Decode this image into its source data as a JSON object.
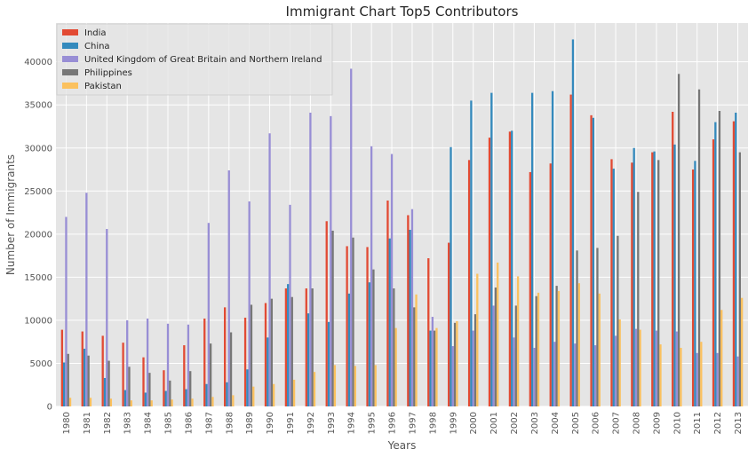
{
  "chart_data": {
    "type": "bar",
    "title": "Immigrant Chart Top5 Contributors",
    "xlabel": "Years",
    "ylabel": "Number of Immigrants",
    "ylim": [
      0,
      44500
    ],
    "yticks": [
      0,
      5000,
      10000,
      15000,
      20000,
      25000,
      30000,
      35000,
      40000
    ],
    "grid": true,
    "legend_position": "upper-left",
    "categories": [
      "1980",
      "1981",
      "1982",
      "1983",
      "1984",
      "1985",
      "1986",
      "1987",
      "1988",
      "1989",
      "1990",
      "1991",
      "1992",
      "1993",
      "1994",
      "1995",
      "1996",
      "1997",
      "1998",
      "1999",
      "2000",
      "2001",
      "2002",
      "2003",
      "2004",
      "2005",
      "2006",
      "2007",
      "2008",
      "2009",
      "2010",
      "2011",
      "2012",
      "2013"
    ],
    "series": [
      {
        "name": "India",
        "color": "#E24A33",
        "values": [
          8900,
          8700,
          8200,
          7400,
          5700,
          4200,
          7100,
          10200,
          11500,
          10300,
          12000,
          13700,
          13700,
          21500,
          18600,
          18500,
          23900,
          22200,
          17200,
          19000,
          28600,
          31200,
          31900,
          27200,
          28200,
          36200,
          33800,
          28700,
          28300,
          29500,
          34200,
          27500,
          31000,
          33100
        ]
      },
      {
        "name": "China",
        "color": "#348ABD",
        "values": [
          5100,
          6700,
          3300,
          1900,
          1600,
          1800,
          2000,
          2600,
          2800,
          4300,
          8000,
          14200,
          10800,
          9800,
          13100,
          14400,
          19500,
          20500,
          8800,
          30100,
          35500,
          36400,
          32000,
          36400,
          36600,
          42600,
          33500,
          27600,
          30000,
          29600,
          30400,
          28500,
          33000,
          34100
        ]
      },
      {
        "name": "United Kingdom of Great Britain and Northern Ireland",
        "color": "#988ED5",
        "values": [
          22000,
          24800,
          20600,
          10000,
          10200,
          9600,
          9500,
          21300,
          27400,
          23800,
          31700,
          23400,
          34100,
          33700,
          39200,
          30200,
          29300,
          22900,
          10400,
          7000,
          8800,
          11700,
          8000,
          6800,
          7500,
          7300,
          7100,
          8200,
          9000,
          8800,
          8700,
          6200,
          6200,
          5800
        ]
      },
      {
        "name": "Philippines",
        "color": "#777777",
        "values": [
          6100,
          5900,
          5300,
          4600,
          3900,
          3000,
          4100,
          7300,
          8600,
          11800,
          12500,
          12700,
          13700,
          20400,
          19600,
          15900,
          13700,
          11500,
          8800,
          9700,
          10700,
          13800,
          11700,
          12800,
          14000,
          18100,
          18400,
          19800,
          24900,
          28600,
          38600,
          36800,
          34300,
          29500
        ]
      },
      {
        "name": "Pakistan",
        "color": "#FBC15E",
        "values": [
          1000,
          1000,
          900,
          700,
          700,
          800,
          900,
          1100,
          1300,
          2300,
          2600,
          3100,
          4000,
          4800,
          4700,
          4800,
          9100,
          13000,
          9100,
          9900,
          15400,
          16700,
          15100,
          13200,
          13400,
          14300,
          13100,
          10100,
          8900,
          7200,
          6800,
          7500,
          11200,
          12600
        ]
      }
    ]
  }
}
